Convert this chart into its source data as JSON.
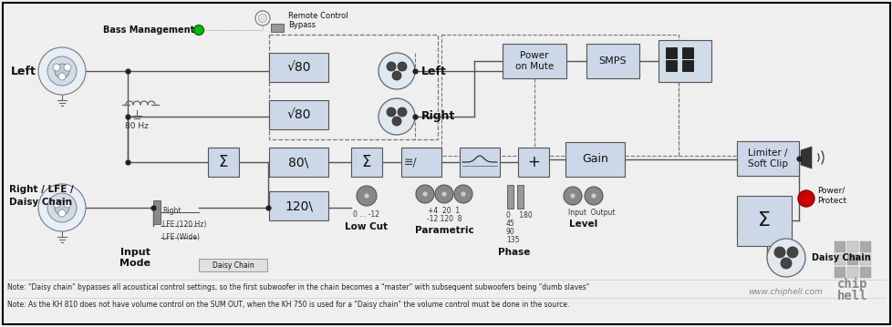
{
  "bg_color": "#efefef",
  "box_fill": "#ccd8e8",
  "box_fill_light": "#dce6f0",
  "line_color": "#555555",
  "text_color": "#111111",
  "note1": "Note: \"Daisy chain\" bypasses all acoustical control settings, so the first subwoofer in the chain becomes a \"master\" with subsequent subwoofers being \"dumb slaves\"",
  "note2": "Note: As the KH 810 does not have volume control on the SUM OUT, when the KH 750 is used for a \"Daisy chain\" the volume control must be done in the source.",
  "website": "www.chiphell.com"
}
